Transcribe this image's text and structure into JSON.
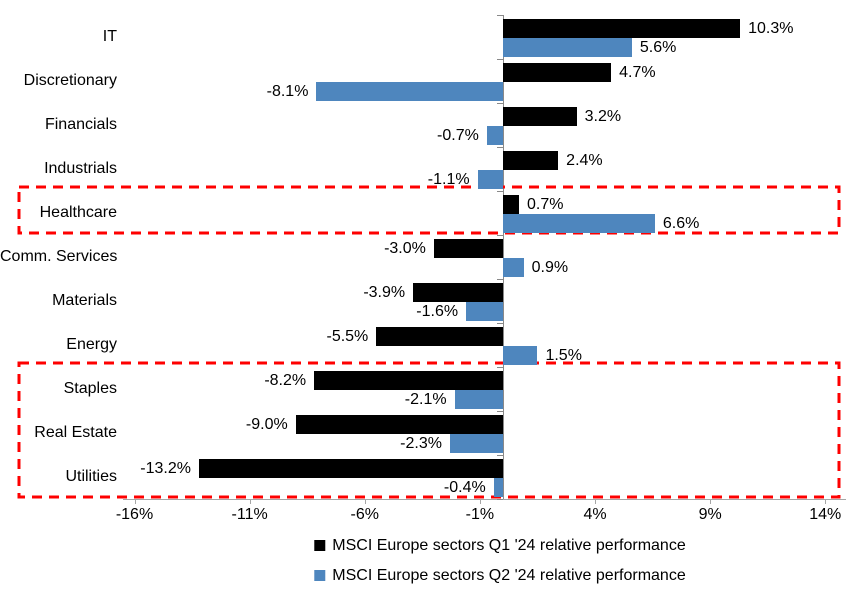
{
  "chart_data": {
    "type": "bar",
    "orientation": "horizontal",
    "title": "",
    "xlabel": "",
    "ylabel": "",
    "grid": false,
    "legend_position": "bottom",
    "xlim": [
      -16.5,
      14.9
    ],
    "x_ticks": [
      "-16%",
      "-11%",
      "-6%",
      "-1%",
      "4%",
      "9%",
      "14%"
    ],
    "x_tick_values": [
      -16,
      -11,
      -6,
      -1,
      4,
      9,
      14
    ],
    "categories": [
      "IT",
      "Discretionary",
      "Financials",
      "Industrials",
      "Healthcare",
      "Comm. Services",
      "Materials",
      "Energy",
      "Staples",
      "Real Estate",
      "Utilities"
    ],
    "series": [
      {
        "name": "MSCI Europe sectors Q1 '24 relative performance",
        "color": "#000000",
        "values": [
          10.3,
          4.7,
          3.2,
          2.4,
          0.7,
          -3.0,
          -3.9,
          -5.5,
          -8.2,
          -9.0,
          -13.2
        ]
      },
      {
        "name": "MSCI Europe sectors Q2 '24 relative performance",
        "color": "#4E86BE",
        "values": [
          5.6,
          -8.1,
          -0.7,
          -1.1,
          6.6,
          0.9,
          -1.6,
          1.5,
          -2.1,
          -2.3,
          -0.4
        ]
      }
    ],
    "value_label_format": "one-decimal-percent",
    "highlight_color": "#FE0000",
    "highlights": [
      {
        "from_category": "Healthcare",
        "to_category": "Healthcare"
      },
      {
        "from_category": "Staples",
        "to_category": "Utilities"
      }
    ]
  }
}
